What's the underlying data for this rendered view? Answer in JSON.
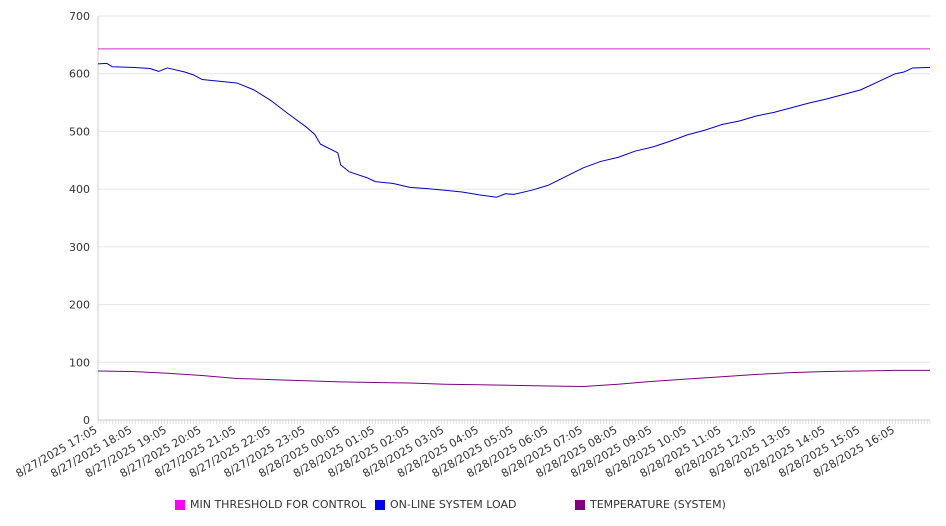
{
  "chart_data": {
    "type": "line",
    "title": "",
    "xlabel": "",
    "ylabel": "",
    "ylim": [
      0,
      700
    ],
    "yticks": [
      "0",
      "100",
      "200",
      "300",
      "400",
      "500",
      "600",
      "700"
    ],
    "grid": true,
    "legend_position": "bottom",
    "x_tick_labels": [
      "8/27/2025 17:05",
      "8/27/2025 18:05",
      "8/27/2025 19:05",
      "8/27/2025 20:05",
      "8/27/2025 21:05",
      "8/27/2025 22:05",
      "8/27/2025 23:05",
      "8/28/2025 00:05",
      "8/28/2025 01:05",
      "8/28/2025 02:05",
      "8/28/2025 03:05",
      "8/28/2025 04:05",
      "8/28/2025 05:05",
      "8/28/2025 06:05",
      "8/28/2025 07:05",
      "8/28/2025 08:05",
      "8/28/2025 09:05",
      "8/28/2025 10:05",
      "8/28/2025 11:05",
      "8/28/2025 12:05",
      "8/28/2025 13:05",
      "8/28/2025 14:05",
      "8/28/2025 15:05",
      "8/28/2025 16:05"
    ],
    "x_end": "8/28/2025 17:05",
    "series": [
      {
        "name": "MIN THRESHOLD FOR CONTROL",
        "color": "#cc33cc",
        "legend_color": "#ff00ff",
        "points": [
          [
            "8/27/2025 17:05",
            643
          ],
          [
            "8/28/2025 17:05",
            643
          ]
        ]
      },
      {
        "name": "ON-LINE SYSTEM LOAD",
        "color": "#0000cc",
        "legend_color": "#0000ff",
        "points": [
          [
            "8/27/2025 17:05",
            617
          ],
          [
            "8/27/2025 17:20",
            618
          ],
          [
            "8/27/2025 17:30",
            612
          ],
          [
            "8/27/2025 18:05",
            611
          ],
          [
            "8/27/2025 18:35",
            609
          ],
          [
            "8/27/2025 18:50",
            604
          ],
          [
            "8/27/2025 19:05",
            610
          ],
          [
            "8/27/2025 19:35",
            603
          ],
          [
            "8/27/2025 19:50",
            598
          ],
          [
            "8/27/2025 20:05",
            590
          ],
          [
            "8/27/2025 20:35",
            587
          ],
          [
            "8/27/2025 21:05",
            584
          ],
          [
            "8/27/2025 21:35",
            572
          ],
          [
            "8/27/2025 22:05",
            553
          ],
          [
            "8/27/2025 22:35",
            530
          ],
          [
            "8/27/2025 23:05",
            508
          ],
          [
            "8/27/2025 23:20",
            495
          ],
          [
            "8/27/2025 23:30",
            478
          ],
          [
            "8/28/2025 00:00",
            463
          ],
          [
            "8/28/2025 00:05",
            442
          ],
          [
            "8/28/2025 00:20",
            430
          ],
          [
            "8/28/2025 00:50",
            420
          ],
          [
            "8/28/2025 01:05",
            413
          ],
          [
            "8/28/2025 01:35",
            410
          ],
          [
            "8/28/2025 02:05",
            403
          ],
          [
            "8/28/2025 02:35",
            401
          ],
          [
            "8/28/2025 03:05",
            398
          ],
          [
            "8/28/2025 03:35",
            395
          ],
          [
            "8/28/2025 04:05",
            390
          ],
          [
            "8/28/2025 04:35",
            386
          ],
          [
            "8/28/2025 04:50",
            392
          ],
          [
            "8/28/2025 05:05",
            391
          ],
          [
            "8/28/2025 05:35",
            398
          ],
          [
            "8/28/2025 06:05",
            407
          ],
          [
            "8/28/2025 06:35",
            422
          ],
          [
            "8/28/2025 07:05",
            437
          ],
          [
            "8/28/2025 07:35",
            448
          ],
          [
            "8/28/2025 08:05",
            455
          ],
          [
            "8/28/2025 08:35",
            466
          ],
          [
            "8/28/2025 09:05",
            473
          ],
          [
            "8/28/2025 09:35",
            483
          ],
          [
            "8/28/2025 10:05",
            494
          ],
          [
            "8/28/2025 10:35",
            502
          ],
          [
            "8/28/2025 11:05",
            512
          ],
          [
            "8/28/2025 11:35",
            518
          ],
          [
            "8/28/2025 12:05",
            527
          ],
          [
            "8/28/2025 12:35",
            533
          ],
          [
            "8/28/2025 13:05",
            541
          ],
          [
            "8/28/2025 13:35",
            549
          ],
          [
            "8/28/2025 14:05",
            556
          ],
          [
            "8/28/2025 14:35",
            564
          ],
          [
            "8/28/2025 15:05",
            572
          ],
          [
            "8/28/2025 15:35",
            586
          ],
          [
            "8/28/2025 16:05",
            600
          ],
          [
            "8/28/2025 16:20",
            603
          ],
          [
            "8/28/2025 16:35",
            610
          ],
          [
            "8/28/2025 17:05",
            611
          ]
        ]
      },
      {
        "name": "TEMPERATURE (SYSTEM)",
        "color": "#800080",
        "legend_color": "#800080",
        "points": [
          [
            "8/27/2025 17:05",
            85
          ],
          [
            "8/27/2025 18:05",
            84
          ],
          [
            "8/27/2025 19:05",
            81
          ],
          [
            "8/27/2025 20:05",
            77
          ],
          [
            "8/27/2025 21:05",
            72
          ],
          [
            "8/27/2025 22:05",
            70
          ],
          [
            "8/27/2025 23:05",
            68
          ],
          [
            "8/28/2025 00:05",
            66
          ],
          [
            "8/28/2025 01:05",
            65
          ],
          [
            "8/28/2025 02:05",
            64
          ],
          [
            "8/28/2025 03:05",
            62
          ],
          [
            "8/28/2025 04:05",
            61
          ],
          [
            "8/28/2025 05:05",
            60
          ],
          [
            "8/28/2025 06:05",
            59
          ],
          [
            "8/28/2025 07:05",
            58
          ],
          [
            "8/28/2025 08:05",
            62
          ],
          [
            "8/28/2025 09:05",
            67
          ],
          [
            "8/28/2025 10:05",
            71
          ],
          [
            "8/28/2025 11:05",
            75
          ],
          [
            "8/28/2025 12:05",
            79
          ],
          [
            "8/28/2025 13:05",
            82
          ],
          [
            "8/28/2025 14:05",
            84
          ],
          [
            "8/28/2025 15:05",
            85
          ],
          [
            "8/28/2025 16:05",
            86
          ],
          [
            "8/28/2025 17:05",
            86
          ]
        ]
      }
    ]
  }
}
